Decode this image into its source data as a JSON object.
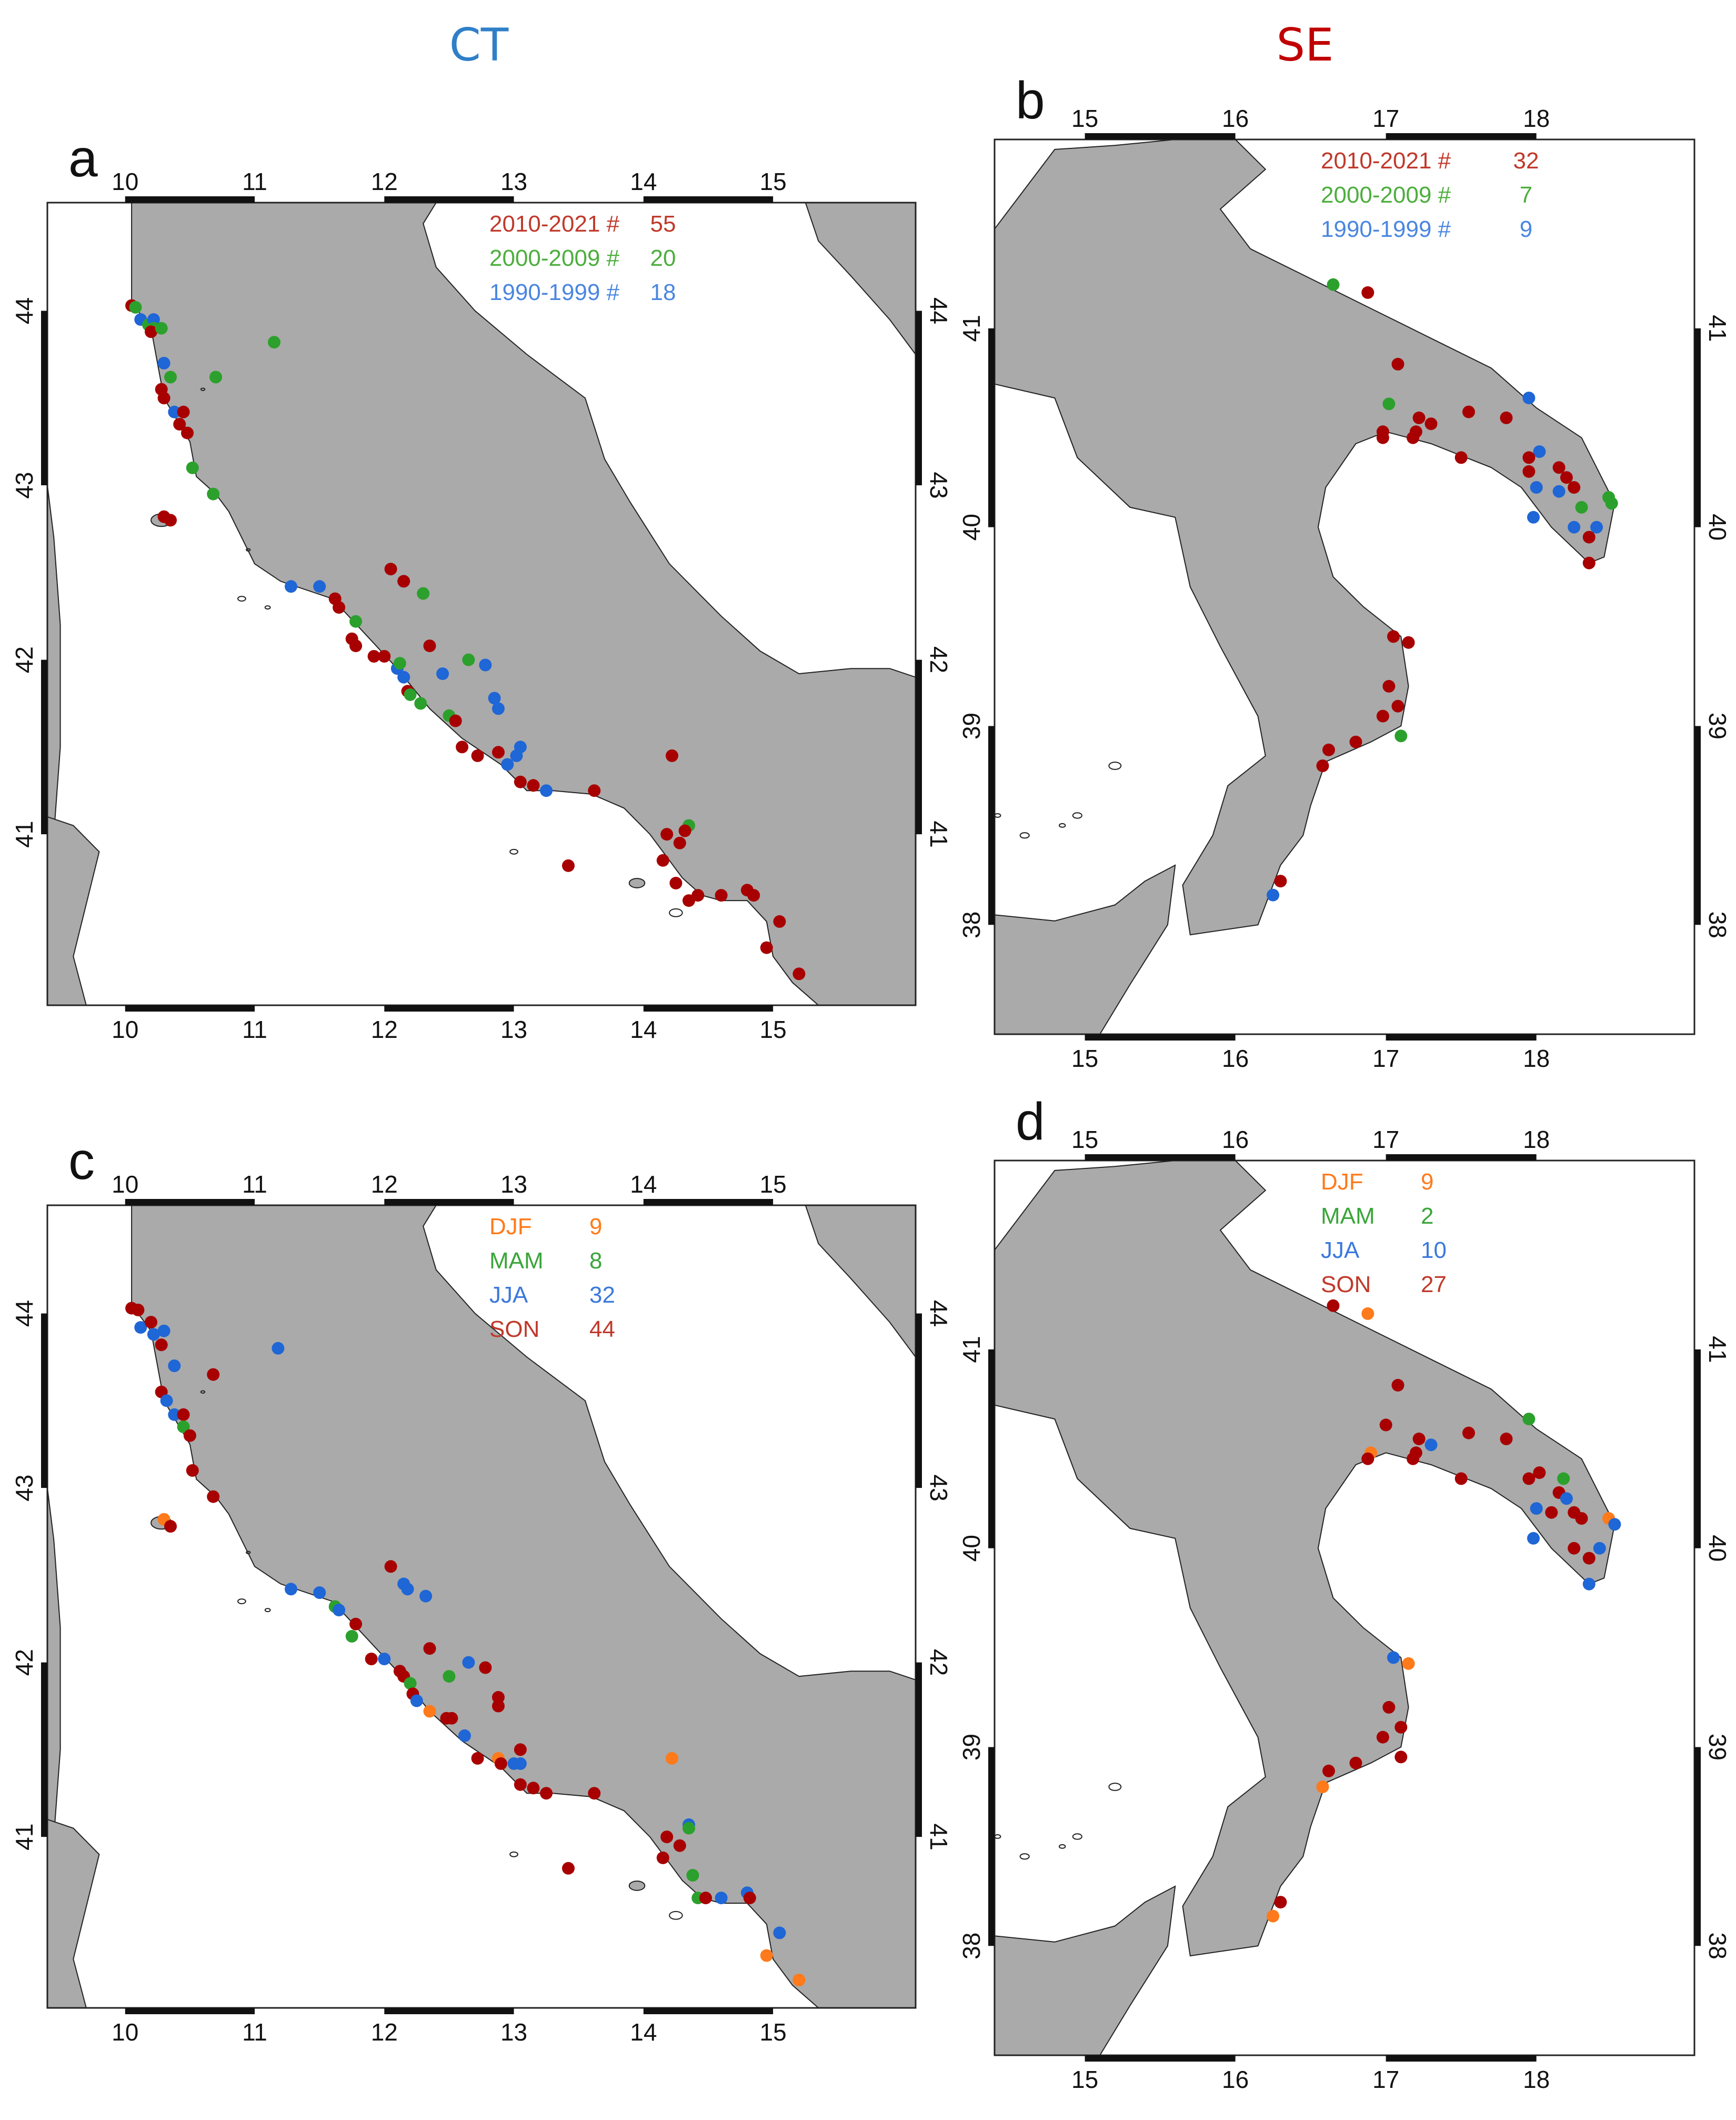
{
  "titles": {
    "ct": {
      "text": "CT",
      "color": "#2f7fc8"
    },
    "se": {
      "text": "SE",
      "color": "#c00000"
    }
  },
  "colors": {
    "land": "#aaaaaa",
    "sea": "#ffffff",
    "coast": "#222222",
    "period_2010_2021": "#a80000",
    "period_2000_2009": "#2ca02c",
    "period_1990_1999": "#1f66d6",
    "season_djf": "#ff7a1a",
    "season_mam": "#2ca02c",
    "season_jja": "#1f66d6",
    "season_son": "#a80000"
  },
  "panels": [
    {
      "id": "a",
      "label": "a",
      "region": "CT",
      "lon_ticks": [
        "10",
        "11",
        "12",
        "13",
        "14",
        "15"
      ],
      "lat_ticks": [
        "41",
        "42",
        "43",
        "44"
      ],
      "legend": [
        {
          "label": "2010-2021 #",
          "count": "55",
          "color": "#c0392b"
        },
        {
          "label": "2000-2009 #",
          "count": "20",
          "color": "#4cae3c"
        },
        {
          "label": "1990-1999 #",
          "count": "18",
          "color": "#4a86e0"
        }
      ]
    },
    {
      "id": "b",
      "label": "b",
      "region": "SE",
      "lon_ticks": [
        "15",
        "16",
        "17",
        "18"
      ],
      "lat_ticks": [
        "38",
        "39",
        "40",
        "41"
      ],
      "legend": [
        {
          "label": "2010-2021 #",
          "count": "32",
          "color": "#c0392b"
        },
        {
          "label": "2000-2009 #",
          "count": "7",
          "color": "#4cae3c"
        },
        {
          "label": "1990-1999 #",
          "count": "9",
          "color": "#4a86e0"
        }
      ]
    },
    {
      "id": "c",
      "label": "c",
      "region": "CT",
      "lon_ticks": [
        "10",
        "11",
        "12",
        "13",
        "14",
        "15"
      ],
      "lat_ticks": [
        "41",
        "42",
        "43",
        "44"
      ],
      "legend": [
        {
          "label": "DJF",
          "count": "9",
          "color": "#ff7a1a"
        },
        {
          "label": "MAM",
          "count": "8",
          "color": "#3aa53a"
        },
        {
          "label": "JJA",
          "count": "32",
          "color": "#3b78dc"
        },
        {
          "label": "SON",
          "count": "44",
          "color": "#c0392b"
        }
      ]
    },
    {
      "id": "d",
      "label": "d",
      "region": "SE",
      "lon_ticks": [
        "15",
        "16",
        "17",
        "18"
      ],
      "lat_ticks": [
        "38",
        "39",
        "40",
        "41"
      ],
      "legend": [
        {
          "label": "DJF",
          "count": "9",
          "color": "#ff7a1a"
        },
        {
          "label": "MAM",
          "count": "2",
          "color": "#3aa53a"
        },
        {
          "label": "JJA",
          "count": "10",
          "color": "#3b78dc"
        },
        {
          "label": "SON",
          "count": "27",
          "color": "#c0392b"
        }
      ]
    }
  ],
  "points": {
    "a": [
      [
        10.05,
        44.03,
        "r"
      ],
      [
        10.08,
        44.02,
        "g"
      ],
      [
        10.12,
        43.95,
        "b"
      ],
      [
        10.18,
        43.92,
        "g"
      ],
      [
        10.22,
        43.95,
        "b"
      ],
      [
        10.22,
        43.9,
        "g"
      ],
      [
        10.2,
        43.88,
        "r"
      ],
      [
        10.28,
        43.9,
        "g"
      ],
      [
        10.3,
        43.7,
        "b"
      ],
      [
        10.35,
        43.62,
        "g"
      ],
      [
        10.28,
        43.55,
        "r"
      ],
      [
        10.3,
        43.5,
        "r"
      ],
      [
        10.38,
        43.42,
        "b"
      ],
      [
        10.45,
        43.42,
        "r"
      ],
      [
        10.42,
        43.35,
        "r"
      ],
      [
        10.48,
        43.3,
        "r"
      ],
      [
        10.52,
        43.1,
        "g"
      ],
      [
        10.68,
        42.95,
        "g"
      ],
      [
        10.3,
        42.82,
        "r"
      ],
      [
        10.35,
        42.8,
        "r"
      ],
      [
        11.15,
        43.82,
        "g"
      ],
      [
        10.7,
        43.62,
        "g"
      ],
      [
        11.28,
        42.42,
        "b"
      ],
      [
        11.5,
        42.42,
        "b"
      ],
      [
        11.62,
        42.35,
        "r"
      ],
      [
        11.65,
        42.3,
        "r"
      ],
      [
        11.78,
        42.22,
        "g"
      ],
      [
        11.75,
        42.12,
        "r"
      ],
      [
        11.78,
        42.08,
        "r"
      ],
      [
        11.92,
        42.02,
        "r"
      ],
      [
        12.0,
        42.02,
        "r"
      ],
      [
        12.05,
        42.52,
        "r"
      ],
      [
        12.15,
        42.45,
        "b"
      ],
      [
        12.15,
        42.45,
        "r"
      ],
      [
        12.3,
        42.38,
        "g"
      ],
      [
        12.1,
        41.95,
        "b"
      ],
      [
        12.12,
        41.98,
        "g"
      ],
      [
        12.15,
        41.9,
        "b"
      ],
      [
        12.18,
        41.82,
        "r"
      ],
      [
        12.2,
        41.8,
        "g"
      ],
      [
        12.28,
        41.75,
        "g"
      ],
      [
        12.35,
        42.08,
        "r"
      ],
      [
        12.45,
        41.92,
        "b"
      ],
      [
        12.5,
        41.68,
        "g"
      ],
      [
        12.55,
        41.65,
        "r"
      ],
      [
        12.65,
        42.0,
        "g"
      ],
      [
        12.78,
        41.97,
        "b"
      ],
      [
        12.85,
        41.78,
        "b"
      ],
      [
        12.88,
        41.72,
        "b"
      ],
      [
        12.6,
        41.5,
        "r"
      ],
      [
        12.72,
        41.45,
        "r"
      ],
      [
        12.88,
        41.47,
        "r"
      ],
      [
        12.95,
        41.4,
        "b"
      ],
      [
        13.05,
        41.5,
        "b"
      ],
      [
        13.02,
        41.45,
        "b"
      ],
      [
        13.05,
        41.3,
        "r"
      ],
      [
        13.15,
        41.28,
        "r"
      ],
      [
        13.25,
        41.25,
        "b"
      ],
      [
        13.62,
        41.25,
        "r"
      ],
      [
        14.22,
        41.45,
        "r"
      ],
      [
        14.35,
        41.05,
        "g"
      ],
      [
        14.32,
        41.02,
        "r"
      ],
      [
        14.18,
        41.0,
        "r"
      ],
      [
        14.28,
        40.95,
        "r"
      ],
      [
        14.15,
        40.85,
        "r"
      ],
      [
        13.42,
        40.82,
        "r"
      ],
      [
        14.25,
        40.72,
        "r"
      ],
      [
        14.35,
        40.62,
        "r"
      ],
      [
        14.42,
        40.65,
        "r"
      ],
      [
        14.6,
        40.65,
        "r"
      ],
      [
        14.8,
        40.68,
        "r"
      ],
      [
        14.85,
        40.65,
        "r"
      ],
      [
        15.05,
        40.5,
        "r"
      ],
      [
        14.95,
        40.35,
        "r"
      ],
      [
        15.2,
        40.2,
        "r"
      ]
    ],
    "b": [
      [
        16.65,
        41.22,
        "g"
      ],
      [
        16.88,
        41.18,
        "r"
      ],
      [
        17.08,
        40.82,
        "r"
      ],
      [
        17.02,
        40.62,
        "g"
      ],
      [
        16.98,
        40.48,
        "r"
      ],
      [
        16.98,
        40.45,
        "r"
      ],
      [
        17.22,
        40.55,
        "r"
      ],
      [
        17.3,
        40.52,
        "r"
      ],
      [
        17.2,
        40.48,
        "r"
      ],
      [
        17.18,
        40.45,
        "r"
      ],
      [
        17.5,
        40.35,
        "r"
      ],
      [
        17.55,
        40.58,
        "r"
      ],
      [
        17.8,
        40.55,
        "r"
      ],
      [
        17.95,
        40.65,
        "b"
      ],
      [
        18.02,
        40.38,
        "b"
      ],
      [
        17.95,
        40.35,
        "r"
      ],
      [
        17.95,
        40.28,
        "r"
      ],
      [
        18.0,
        40.2,
        "b"
      ],
      [
        18.15,
        40.3,
        "r"
      ],
      [
        18.15,
        40.18,
        "b"
      ],
      [
        18.2,
        40.25,
        "r"
      ],
      [
        18.25,
        40.2,
        "r"
      ],
      [
        18.3,
        40.1,
        "g"
      ],
      [
        17.98,
        40.05,
        "b"
      ],
      [
        18.25,
        40.0,
        "b"
      ],
      [
        18.35,
        39.95,
        "r"
      ],
      [
        18.4,
        40.0,
        "b"
      ],
      [
        18.48,
        40.15,
        "g"
      ],
      [
        18.5,
        40.12,
        "g"
      ],
      [
        18.35,
        39.82,
        "r"
      ],
      [
        17.05,
        39.45,
        "r"
      ],
      [
        17.15,
        39.42,
        "r"
      ],
      [
        17.02,
        39.2,
        "r"
      ],
      [
        17.08,
        39.1,
        "r"
      ],
      [
        16.98,
        39.05,
        "r"
      ],
      [
        17.1,
        38.95,
        "g"
      ],
      [
        16.8,
        38.92,
        "r"
      ],
      [
        16.62,
        38.88,
        "r"
      ],
      [
        16.58,
        38.8,
        "r"
      ],
      [
        16.3,
        38.22,
        "r"
      ],
      [
        16.25,
        38.15,
        "b"
      ]
    ],
    "c": [
      [
        10.05,
        44.03,
        "r"
      ],
      [
        10.1,
        44.02,
        "r"
      ],
      [
        10.12,
        43.92,
        "b"
      ],
      [
        10.2,
        43.95,
        "r"
      ],
      [
        10.22,
        43.88,
        "b"
      ],
      [
        10.3,
        43.9,
        "b"
      ],
      [
        10.28,
        43.82,
        "r"
      ],
      [
        10.38,
        43.7,
        "b"
      ],
      [
        10.68,
        43.65,
        "r"
      ],
      [
        11.18,
        43.8,
        "b"
      ],
      [
        10.28,
        43.55,
        "r"
      ],
      [
        10.32,
        43.5,
        "b"
      ],
      [
        10.38,
        43.42,
        "b"
      ],
      [
        10.45,
        43.42,
        "r"
      ],
      [
        10.45,
        43.35,
        "g"
      ],
      [
        10.5,
        43.3,
        "r"
      ],
      [
        10.52,
        43.1,
        "r"
      ],
      [
        10.68,
        42.95,
        "r"
      ],
      [
        10.3,
        42.82,
        "d"
      ],
      [
        10.35,
        42.78,
        "r"
      ],
      [
        11.28,
        42.42,
        "b"
      ],
      [
        11.5,
        42.4,
        "b"
      ],
      [
        11.62,
        42.32,
        "g"
      ],
      [
        11.65,
        42.3,
        "b"
      ],
      [
        11.78,
        42.22,
        "r"
      ],
      [
        11.75,
        42.15,
        "g"
      ],
      [
        11.9,
        42.02,
        "r"
      ],
      [
        12.0,
        42.02,
        "b"
      ],
      [
        12.05,
        42.55,
        "r"
      ],
      [
        12.15,
        42.45,
        "b"
      ],
      [
        12.18,
        42.42,
        "b"
      ],
      [
        12.32,
        42.38,
        "b"
      ],
      [
        12.12,
        41.95,
        "r"
      ],
      [
        12.15,
        41.92,
        "r"
      ],
      [
        12.2,
        41.88,
        "g"
      ],
      [
        12.22,
        41.82,
        "r"
      ],
      [
        12.25,
        41.78,
        "b"
      ],
      [
        12.35,
        41.72,
        "d"
      ],
      [
        12.35,
        42.08,
        "r"
      ],
      [
        12.5,
        41.92,
        "g"
      ],
      [
        12.48,
        41.68,
        "r"
      ],
      [
        12.52,
        41.68,
        "r"
      ],
      [
        12.62,
        41.58,
        "b"
      ],
      [
        12.65,
        42.0,
        "b"
      ],
      [
        12.78,
        41.97,
        "r"
      ],
      [
        12.88,
        41.8,
        "r"
      ],
      [
        12.88,
        41.75,
        "r"
      ],
      [
        12.72,
        41.45,
        "r"
      ],
      [
        12.88,
        41.45,
        "d"
      ],
      [
        12.9,
        41.42,
        "r"
      ],
      [
        13.0,
        41.42,
        "b"
      ],
      [
        13.05,
        41.5,
        "r"
      ],
      [
        13.05,
        41.42,
        "b"
      ],
      [
        13.05,
        41.3,
        "r"
      ],
      [
        13.15,
        41.28,
        "r"
      ],
      [
        13.25,
        41.25,
        "r"
      ],
      [
        13.62,
        41.25,
        "r"
      ],
      [
        14.22,
        41.45,
        "d"
      ],
      [
        14.35,
        41.07,
        "b"
      ],
      [
        14.35,
        41.05,
        "g"
      ],
      [
        14.18,
        41.0,
        "r"
      ],
      [
        14.28,
        40.95,
        "r"
      ],
      [
        14.15,
        40.88,
        "r"
      ],
      [
        13.42,
        40.82,
        "r"
      ],
      [
        14.38,
        40.78,
        "g"
      ],
      [
        14.42,
        40.65,
        "g"
      ],
      [
        14.48,
        40.65,
        "r"
      ],
      [
        14.6,
        40.65,
        "b"
      ],
      [
        14.8,
        40.68,
        "b"
      ],
      [
        14.82,
        40.65,
        "r"
      ],
      [
        15.05,
        40.45,
        "b"
      ],
      [
        14.95,
        40.32,
        "d"
      ],
      [
        15.2,
        40.18,
        "d"
      ]
    ],
    "d": [
      [
        16.65,
        41.22,
        "r"
      ],
      [
        16.88,
        41.18,
        "d"
      ],
      [
        17.08,
        40.82,
        "r"
      ],
      [
        17.0,
        40.62,
        "r"
      ],
      [
        16.9,
        40.48,
        "d"
      ],
      [
        16.88,
        40.45,
        "r"
      ],
      [
        17.22,
        40.55,
        "r"
      ],
      [
        17.3,
        40.52,
        "b"
      ],
      [
        17.2,
        40.48,
        "r"
      ],
      [
        17.18,
        40.45,
        "r"
      ],
      [
        17.5,
        40.35,
        "r"
      ],
      [
        17.55,
        40.58,
        "r"
      ],
      [
        17.8,
        40.55,
        "r"
      ],
      [
        17.95,
        40.65,
        "g"
      ],
      [
        18.02,
        40.38,
        "r"
      ],
      [
        17.95,
        40.35,
        "r"
      ],
      [
        18.18,
        40.35,
        "g"
      ],
      [
        18.0,
        40.2,
        "b"
      ],
      [
        18.15,
        40.28,
        "r"
      ],
      [
        18.2,
        40.25,
        "b"
      ],
      [
        18.25,
        40.18,
        "r"
      ],
      [
        18.3,
        40.15,
        "r"
      ],
      [
        18.1,
        40.18,
        "r"
      ],
      [
        17.98,
        40.05,
        "b"
      ],
      [
        18.25,
        40.0,
        "r"
      ],
      [
        18.35,
        39.95,
        "r"
      ],
      [
        18.42,
        40.0,
        "b"
      ],
      [
        18.48,
        40.15,
        "d"
      ],
      [
        18.52,
        40.12,
        "b"
      ],
      [
        18.35,
        39.82,
        "b"
      ],
      [
        17.05,
        39.45,
        "b"
      ],
      [
        17.15,
        39.42,
        "d"
      ],
      [
        17.02,
        39.2,
        "r"
      ],
      [
        17.1,
        39.1,
        "r"
      ],
      [
        16.98,
        39.05,
        "r"
      ],
      [
        17.1,
        38.95,
        "r"
      ],
      [
        16.8,
        38.92,
        "r"
      ],
      [
        16.62,
        38.88,
        "r"
      ],
      [
        16.58,
        38.8,
        "d"
      ],
      [
        16.3,
        38.22,
        "r"
      ],
      [
        16.25,
        38.15,
        "d"
      ]
    ]
  }
}
